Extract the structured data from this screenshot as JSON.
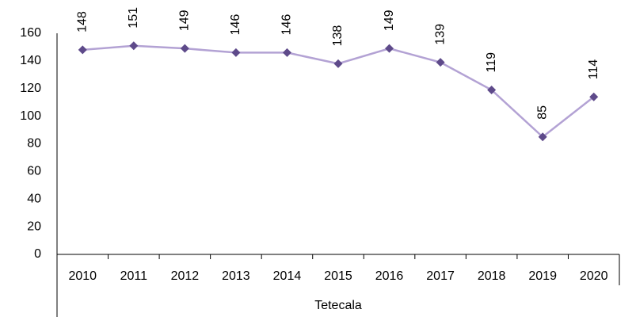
{
  "chart_data": {
    "type": "line",
    "categories": [
      "2010",
      "2011",
      "2012",
      "2013",
      "2014",
      "2015",
      "2016",
      "2017",
      "2018",
      "2019",
      "2020"
    ],
    "category_group": "Tetecala",
    "series": [
      {
        "name": "Tetecala",
        "color": "#b3a2d4",
        "marker_color": "#5e4a8a",
        "values": [
          148,
          151,
          149,
          146,
          146,
          138,
          149,
          139,
          119,
          85,
          114
        ]
      }
    ],
    "ylim": [
      0,
      160
    ],
    "yticks": [
      0,
      20,
      40,
      60,
      80,
      100,
      120,
      140,
      160
    ],
    "grid": false,
    "legend": false
  }
}
